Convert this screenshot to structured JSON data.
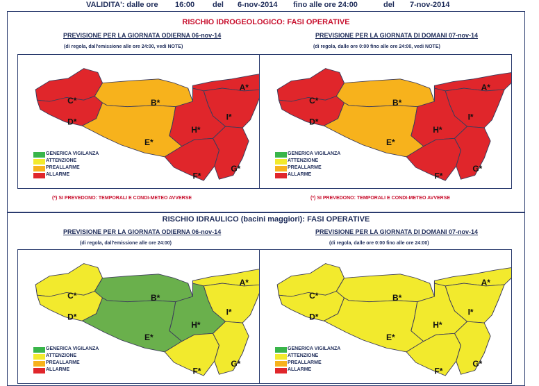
{
  "validity": {
    "label": "VALIDITA': dalle ore",
    "from_time": "16:00",
    "del1": "del",
    "from_date": "6-nov-2014",
    "until": "fino alle ore 24:00",
    "del2": "del",
    "to_date": "7-nov-2014"
  },
  "legend": [
    {
      "label": "GENERICA VIGILANZA",
      "color": "#39b54a"
    },
    {
      "label": "ATTENZIONE",
      "color": "#f2ea2d"
    },
    {
      "label": "PREALLARME",
      "color": "#f7b21c"
    },
    {
      "label": "ALLARME",
      "color": "#e0262b"
    }
  ],
  "zone_labels": [
    "A*",
    "B*",
    "C*",
    "D*",
    "E*",
    "F*",
    "G*",
    "H*",
    "I*"
  ],
  "sections": [
    {
      "title": "RISCHIO IDROGEOLOGICO: FASI OPERATIVE",
      "left": {
        "heading": "PREVISIONE PER LA GIORNATA ODIERNA 06-nov-14",
        "note": "(di regola, dall'emissione alle ore 24:00, vedi NOTE)",
        "zones": {
          "A": "#e0262b",
          "B": "#f7b21c",
          "C": "#e0262b",
          "D": "#e0262b",
          "E": "#f7b21c",
          "F": "#e0262b",
          "G": "#e0262b",
          "H": "#e0262b",
          "I": "#e0262b"
        }
      },
      "right": {
        "heading": "PREVISIONE PER LA GIORNATA DI DOMANI 07-nov-14",
        "note": "(di regola, dalle ore 0:00 fino alle ore 24:00, vedi NOTE)",
        "zones": {
          "A": "#e0262b",
          "B": "#f7b21c",
          "C": "#e0262b",
          "D": "#e0262b",
          "E": "#f7b21c",
          "F": "#e0262b",
          "G": "#e0262b",
          "H": "#e0262b",
          "I": "#e0262b"
        }
      },
      "footnote": "(*) SI PREVEDONO: TEMPORALI E CONDI-METEO AVVERSE"
    },
    {
      "title": "RISCHIO IDRAULICO (bacini maggiori): FASI OPERATIVE",
      "left": {
        "heading": "PREVISIONE PER LA GIORNATA ODIERNA 06-nov-14",
        "note": "(di regola, dall'emissione alle ore 24:00)",
        "zones": {
          "A": "#f2ea2d",
          "B": "#6ab04c",
          "C": "#f2ea2d",
          "D": "#f2ea2d",
          "E": "#6ab04c",
          "F": "#f2ea2d",
          "G": "#f2ea2d",
          "H": "#6ab04c",
          "I": "#f2ea2d"
        }
      },
      "right": {
        "heading": "PREVISIONE PER LA GIORNATA DI DOMANI 07-nov-14",
        "note": "(di regola, dalle ore 0:00 fino alle ore 24:00)",
        "zones": {
          "A": "#f2ea2d",
          "B": "#f2ea2d",
          "C": "#f2ea2d",
          "D": "#f2ea2d",
          "E": "#f2ea2d",
          "F": "#f2ea2d",
          "G": "#f2ea2d",
          "H": "#f2ea2d",
          "I": "#f2ea2d"
        }
      }
    }
  ]
}
